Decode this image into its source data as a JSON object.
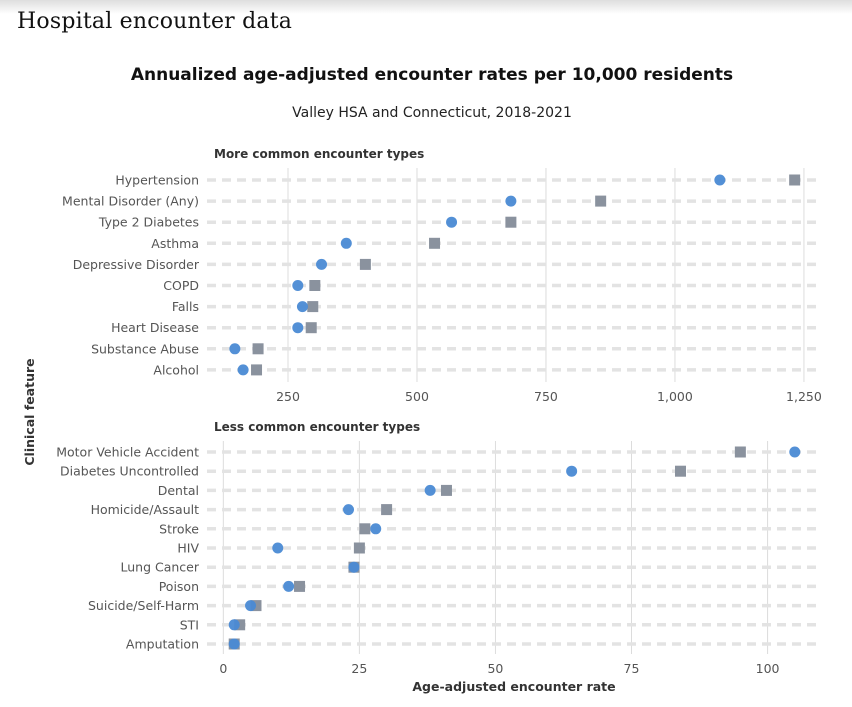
{
  "page": {
    "title": "Hospital encounter data"
  },
  "chart_data": {
    "type": "scatter",
    "subtype": "dot-plot",
    "title": "Annualized age-adjusted encounter rates per 10,000 residents",
    "subtitle": "Valley HSA and Connecticut, 2018-2021",
    "ylabel": "Clinical feature",
    "xlabel": "Age-adjusted encounter rate",
    "legend": "none",
    "series_styles": [
      {
        "name": "Valley HSA",
        "marker": "circle",
        "color": "#4a8ad4"
      },
      {
        "name": "Connecticut",
        "marker": "square",
        "color": "#8a929e"
      }
    ],
    "panels": [
      {
        "title": "More common encounter types",
        "xlim": [
          93,
          1285
        ],
        "ticks": [
          250,
          500,
          750,
          1000,
          1250
        ],
        "tick_labels": [
          "250",
          "500",
          "750",
          "1,000",
          "1,250"
        ],
        "grid": true,
        "categories": [
          "Hypertension",
          "Mental Disorder (Any)",
          "Type 2 Diabetes",
          "Asthma",
          "Depressive Disorder",
          "COPD",
          "Falls",
          "Heart Disease",
          "Substance Abuse",
          "Alcohol"
        ],
        "series": [
          {
            "name": "Valley HSA",
            "values": [
              1087,
              682,
              567,
              363,
              315,
              269,
              278,
              269,
              147,
              163
            ]
          },
          {
            "name": "Connecticut",
            "values": [
              1232,
              856,
              682,
              534,
              400,
              302,
              298,
              295,
              192,
              189
            ]
          }
        ]
      },
      {
        "title": "Less common encounter types",
        "xlim": [
          -3,
          110
        ],
        "ticks": [
          0,
          25,
          50,
          75,
          100
        ],
        "tick_labels": [
          "0",
          "25",
          "50",
          "75",
          "100"
        ],
        "grid": true,
        "categories": [
          "Motor Vehicle Accident",
          "Diabetes Uncontrolled",
          "Dental",
          "Homicide/Assault",
          "Stroke",
          "HIV",
          "Lung Cancer",
          "Poison",
          "Suicide/Self-Harm",
          "STI",
          "Amputation"
        ],
        "series": [
          {
            "name": "Valley HSA",
            "values": [
              105,
              64,
              38,
              23,
              28,
              10,
              24,
              12,
              5,
              2,
              2
            ]
          },
          {
            "name": "Connecticut",
            "values": [
              95,
              84,
              41,
              30,
              26,
              25,
              24,
              14,
              6,
              3,
              2
            ]
          }
        ]
      }
    ]
  }
}
